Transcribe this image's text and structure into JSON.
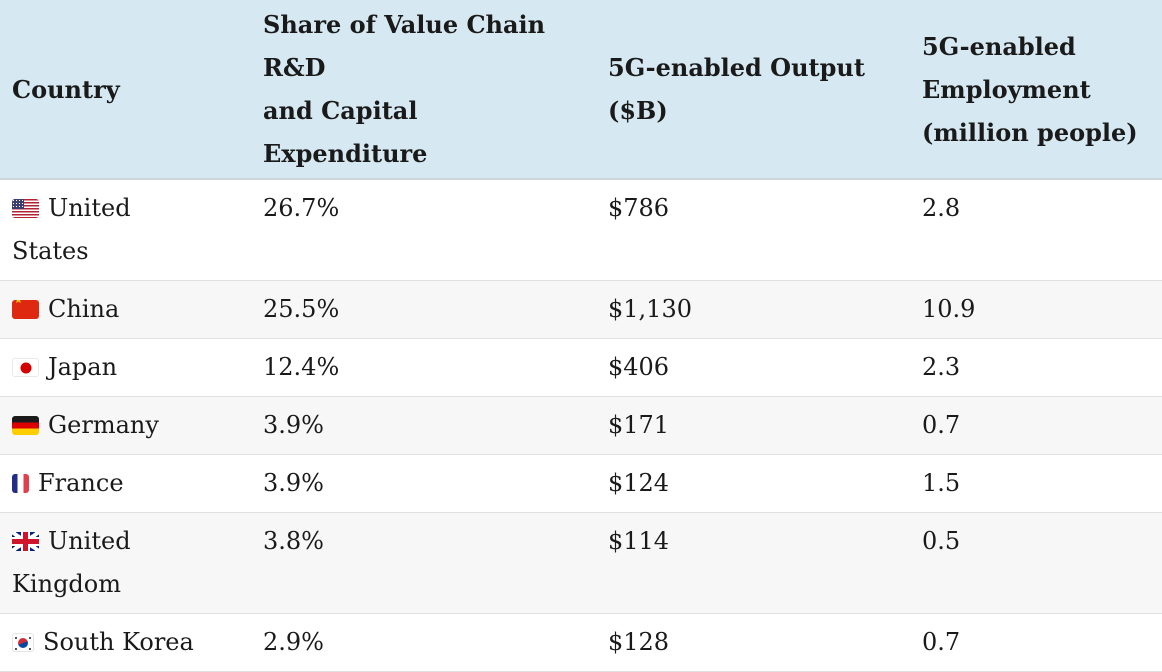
{
  "table": {
    "columns": [
      {
        "label": "Country"
      },
      {
        "label": "Share of Value Chain\nR&D\nand Capital\nExpenditure"
      },
      {
        "label": "5G-enabled Output\n($B)"
      },
      {
        "label": "5G-enabled\nEmployment\n(million people)"
      }
    ],
    "rows": [
      {
        "flag": "us",
        "flag_icon": "us-flag-icon",
        "country": "United States",
        "country_display": "United\nStates",
        "share": "26.7%",
        "output": "$786",
        "employment": "2.8"
      },
      {
        "flag": "cn",
        "flag_icon": "cn-flag-icon",
        "country": "China",
        "country_display": "China",
        "share": "25.5%",
        "output": "$1,130",
        "employment": "10.9"
      },
      {
        "flag": "jp",
        "flag_icon": "jp-flag-icon",
        "country": "Japan",
        "country_display": "Japan",
        "share": "12.4%",
        "output": "$406",
        "employment": "2.3"
      },
      {
        "flag": "de",
        "flag_icon": "de-flag-icon",
        "country": "Germany",
        "country_display": "Germany",
        "share": "3.9%",
        "output": "$171",
        "employment": "0.7"
      },
      {
        "flag": "fr",
        "flag_icon": "fr-flag-icon",
        "country": "France",
        "country_display": "France",
        "share": "3.9%",
        "output": "$124",
        "employment": "1.5"
      },
      {
        "flag": "gb",
        "flag_icon": "gb-flag-icon",
        "country": "United Kingdom",
        "country_display": "United\nKingdom",
        "share": "3.8%",
        "output": "$114",
        "employment": "0.5"
      },
      {
        "flag": "kr",
        "flag_icon": "kr-flag-icon",
        "country": "South Korea",
        "country_display": "South Korea",
        "share": "2.9%",
        "output": "$128",
        "employment": "0.7"
      }
    ]
  },
  "colors": {
    "header_bg": "#d6e9f2",
    "alt_row_bg": "#f7f7f7",
    "divider": "#e0e0e0",
    "header_divider": "#cfd6da",
    "text": "#1a1a1a",
    "page_bg": "#ffffff"
  },
  "chart_data": {
    "type": "table",
    "columns": [
      "Country",
      "Share of Value Chain R&D and Capital Expenditure",
      "5G-enabled Output ($B)",
      "5G-enabled Employment (million people)"
    ],
    "rows": [
      [
        "United States",
        "26.7%",
        "$786",
        "2.8"
      ],
      [
        "China",
        "25.5%",
        "$1,130",
        "10.9"
      ],
      [
        "Japan",
        "12.4%",
        "$406",
        "2.3"
      ],
      [
        "Germany",
        "3.9%",
        "$171",
        "0.7"
      ],
      [
        "France",
        "3.9%",
        "$124",
        "1.5"
      ],
      [
        "United Kingdom",
        "3.8%",
        "$114",
        "0.5"
      ],
      [
        "South Korea",
        "2.9%",
        "$128",
        "0.7"
      ]
    ],
    "notes": "Alternating-row table; header row has light blue background; each country cell is prefixed with its national flag icon."
  }
}
